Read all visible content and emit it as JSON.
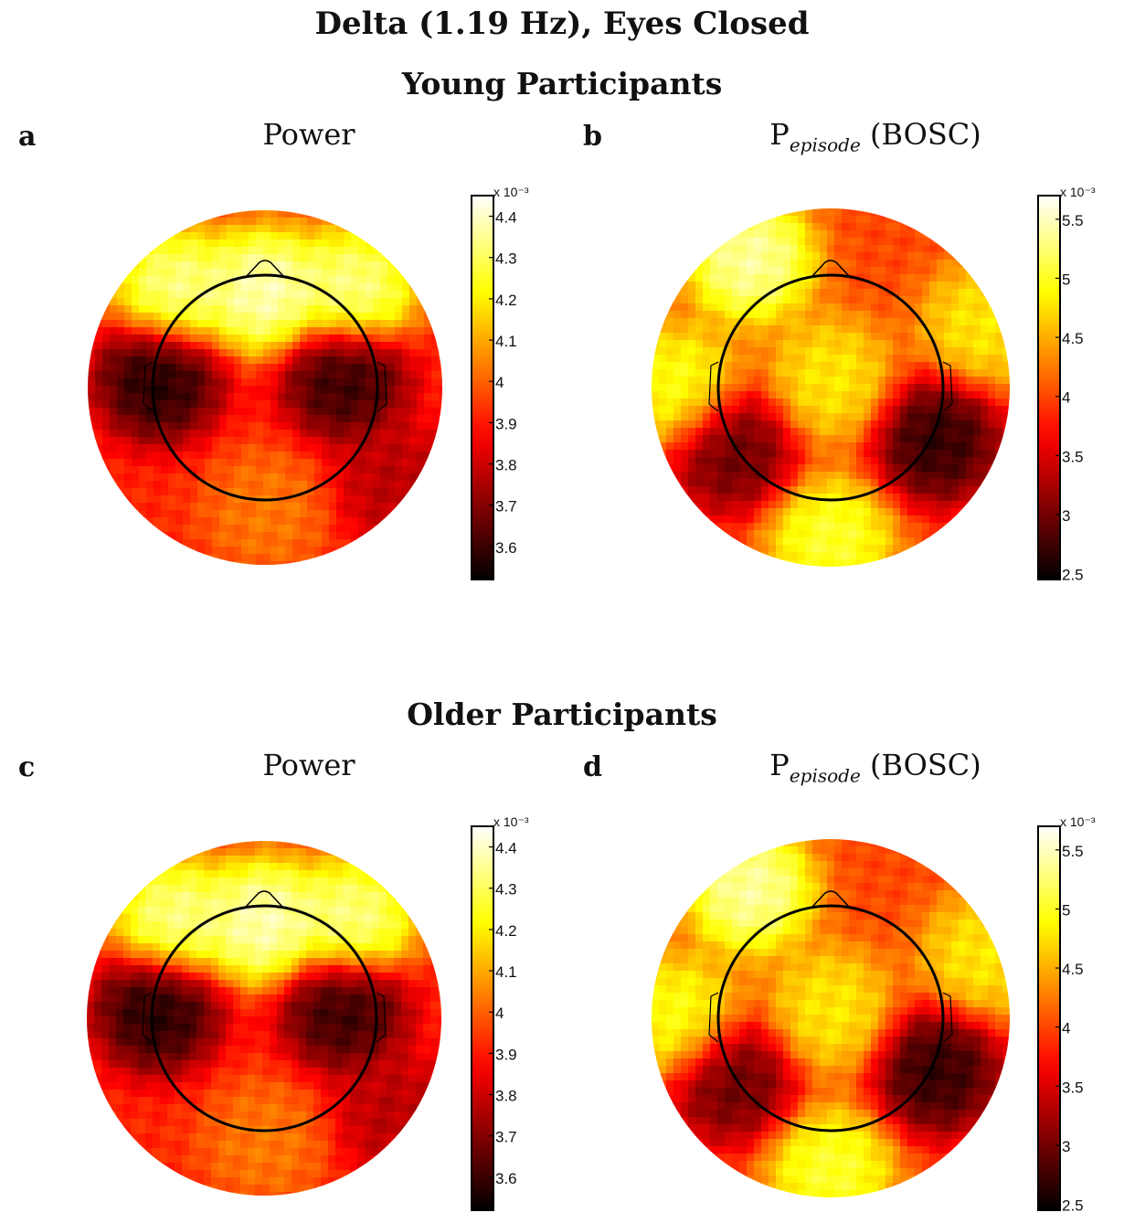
{
  "figure": {
    "title": "Delta (1.19 Hz), Eyes Closed",
    "rows": [
      {
        "label": "Young Participants"
      },
      {
        "label": "Older Participants"
      }
    ],
    "panels": [
      {
        "letter": "a",
        "title": "Power"
      },
      {
        "letter": "b",
        "title_main": "P",
        "title_sub": "episode",
        "title_rest": " (BOSC)"
      },
      {
        "letter": "c",
        "title": "Power"
      },
      {
        "letter": "d",
        "title_main": "P",
        "title_sub": "episode",
        "title_rest": " (BOSC)"
      }
    ]
  },
  "chart_data": [
    {
      "type": "heatmap",
      "panel": "a",
      "title": "Power",
      "colormap": "hot",
      "colorbar": {
        "exponent_label": "x 10⁻³",
        "ticks": [
          "4.4",
          "4.3",
          "4.2",
          "4.1",
          "4",
          "3.9",
          "3.8",
          "3.7",
          "3.6"
        ],
        "range": [
          3.52,
          4.45
        ]
      },
      "hotspots": [
        {
          "x": 0.0,
          "y": 0.55,
          "value": 4.45
        },
        {
          "x": -0.5,
          "y": 0.55,
          "value": 4.4
        },
        {
          "x": 0.5,
          "y": 0.55,
          "value": 4.4
        },
        {
          "x": -0.6,
          "y": 0.05,
          "value": 3.52
        },
        {
          "x": 0.45,
          "y": 0.05,
          "value": 3.55
        },
        {
          "x": 0.75,
          "y": -0.55,
          "value": 3.75
        },
        {
          "x": 0.0,
          "y": -0.7,
          "value": 4.05
        }
      ],
      "baseline": 3.92
    },
    {
      "type": "heatmap",
      "panel": "b",
      "title": "P episode (BOSC)",
      "colormap": "hot",
      "colorbar": {
        "exponent_label": "x 10⁻³",
        "ticks": [
          "5.5",
          "5",
          "4.5",
          "4",
          "3.5",
          "3",
          "2.5"
        ],
        "range": [
          2.45,
          5.7
        ]
      },
      "hotspots": [
        {
          "x": -0.45,
          "y": 0.72,
          "value": 5.6
        },
        {
          "x": -0.85,
          "y": 0.0,
          "value": 5.1
        },
        {
          "x": 0.0,
          "y": 0.05,
          "value": 4.9
        },
        {
          "x": -0.55,
          "y": -0.35,
          "value": 2.8
        },
        {
          "x": 0.6,
          "y": -0.3,
          "value": 2.5
        },
        {
          "x": 0.0,
          "y": -0.85,
          "value": 5.2
        },
        {
          "x": 0.85,
          "y": 0.35,
          "value": 4.9
        }
      ],
      "baseline": 4.0
    },
    {
      "type": "heatmap",
      "panel": "c",
      "title": "Power",
      "colormap": "hot",
      "colorbar": {
        "exponent_label": "x 10⁻³",
        "ticks": [
          "4.4",
          "4.3",
          "4.2",
          "4.1",
          "4",
          "3.9",
          "3.8",
          "3.7",
          "3.6"
        ],
        "range": [
          3.52,
          4.45
        ]
      },
      "hotspots": [
        {
          "x": 0.0,
          "y": 0.55,
          "value": 4.45
        },
        {
          "x": -0.5,
          "y": 0.55,
          "value": 4.4
        },
        {
          "x": 0.5,
          "y": 0.55,
          "value": 4.4
        },
        {
          "x": -0.6,
          "y": 0.05,
          "value": 3.52
        },
        {
          "x": 0.45,
          "y": 0.05,
          "value": 3.55
        },
        {
          "x": 0.75,
          "y": -0.55,
          "value": 3.75
        },
        {
          "x": 0.0,
          "y": -0.7,
          "value": 4.05
        }
      ],
      "baseline": 3.92
    },
    {
      "type": "heatmap",
      "panel": "d",
      "title": "P episode (BOSC)",
      "colormap": "hot",
      "colorbar": {
        "exponent_label": "x 10⁻³",
        "ticks": [
          "5.5",
          "5",
          "4.5",
          "4",
          "3.5",
          "3",
          "2.5"
        ],
        "range": [
          2.45,
          5.7
        ]
      },
      "hotspots": [
        {
          "x": -0.45,
          "y": 0.72,
          "value": 5.6
        },
        {
          "x": -0.85,
          "y": 0.0,
          "value": 5.1
        },
        {
          "x": 0.0,
          "y": 0.05,
          "value": 4.9
        },
        {
          "x": -0.55,
          "y": -0.35,
          "value": 2.8
        },
        {
          "x": 0.6,
          "y": -0.3,
          "value": 2.5
        },
        {
          "x": 0.0,
          "y": -0.85,
          "value": 5.2
        },
        {
          "x": 0.85,
          "y": 0.35,
          "value": 4.9
        }
      ],
      "baseline": 4.0
    }
  ]
}
